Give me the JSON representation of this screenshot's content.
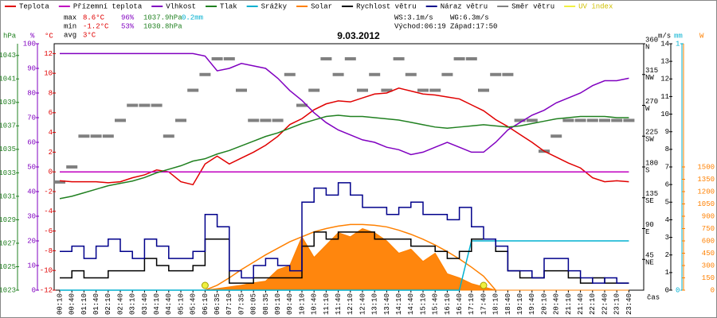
{
  "chart_data": {
    "type": "line",
    "title": "9.03.2012",
    "x_label": "čas",
    "categories": [
      "00:10",
      "00:40",
      "01:10",
      "01:40",
      "02:10",
      "02:40",
      "03:10",
      "03:40",
      "04:10",
      "04:40",
      "05:10",
      "05:40",
      "06:10",
      "06:35",
      "07:10",
      "07:35",
      "08:05",
      "08:35",
      "09:10",
      "09:40",
      "10:10",
      "10:40",
      "11:10",
      "11:40",
      "12:10",
      "12:40",
      "13:10",
      "13:40",
      "14:10",
      "14:40",
      "15:10",
      "15:40",
      "16:10",
      "16:40",
      "17:10",
      "17:40",
      "18:10",
      "18:40",
      "19:10",
      "19:40",
      "20:10",
      "20:40",
      "21:10",
      "21:40",
      "22:10",
      "22:40",
      "23:10",
      "23:40"
    ],
    "axes": {
      "hpa": {
        "label": "hPa",
        "color": "#208020",
        "lim": [
          1023,
          1044
        ],
        "ticks": [
          1023,
          1025,
          1027,
          1029,
          1031,
          1033,
          1035,
          1037,
          1039,
          1041,
          1043
        ]
      },
      "pct": {
        "label": "%",
        "color": "#8000c0",
        "lim": [
          0,
          100
        ],
        "ticks": [
          0,
          10,
          20,
          30,
          40,
          50,
          60,
          70,
          80,
          90,
          100
        ]
      },
      "temp": {
        "label": "°C",
        "color": "#e00000",
        "lim": [
          -12,
          13
        ],
        "ticks": [
          -12,
          -10,
          -8,
          -6,
          -4,
          -2,
          0,
          2,
          4,
          6,
          8,
          10,
          12
        ]
      },
      "dir": {
        "color": "#000000",
        "lim": [
          0,
          360
        ],
        "ticks": [
          45,
          90,
          135,
          180,
          225,
          270,
          315,
          360
        ],
        "compass": [
          "NE",
          "E",
          "SE",
          "S",
          "SW",
          "W",
          "NW",
          "N"
        ]
      },
      "ms": {
        "label": "m/s",
        "color": "#000000",
        "lim": [
          0,
          14
        ],
        "ticks": [
          0,
          1,
          2,
          3,
          4,
          5,
          6,
          7,
          8,
          9,
          10,
          11,
          12,
          13,
          14
        ]
      },
      "mm": {
        "label": "mm",
        "color": "#00b0d0",
        "lim": [
          0,
          1
        ],
        "ticks": [
          0,
          1
        ]
      },
      "w": {
        "label": "W",
        "color": "#ff8000",
        "lim": [
          0,
          3000
        ],
        "ticks": [
          0,
          150,
          300,
          450,
          600,
          750,
          900,
          1050,
          1200,
          1350,
          1500
        ]
      }
    },
    "series": [
      {
        "name": "Teplota",
        "color": "#e00000",
        "axis": "temp",
        "style": "line",
        "values": [
          -0.9,
          -1.0,
          -1.0,
          -1.0,
          -1.1,
          -1.0,
          -0.6,
          -0.3,
          0.2,
          0.0,
          -1.0,
          -1.3,
          0.8,
          1.6,
          0.8,
          1.4,
          2.0,
          2.7,
          3.6,
          4.8,
          5.4,
          6.3,
          6.9,
          7.2,
          7.1,
          7.5,
          7.9,
          8.0,
          8.5,
          8.2,
          7.9,
          7.8,
          7.6,
          7.4,
          6.8,
          6.2,
          5.3,
          4.6,
          3.8,
          3.0,
          2.1,
          1.5,
          0.9,
          0.4,
          -0.6,
          -1.0,
          -0.9,
          -1.0
        ]
      },
      {
        "name": "Přízemní teplota",
        "color": "#c000c0",
        "axis": "temp",
        "style": "line",
        "values": [
          0,
          0,
          0,
          0,
          0,
          0,
          0,
          0,
          0,
          0,
          0,
          0,
          0,
          0,
          0,
          0,
          0,
          0,
          0,
          0,
          0,
          0,
          0,
          0,
          0,
          0,
          0,
          0,
          0,
          0,
          0,
          0,
          0,
          0,
          0,
          0,
          0,
          0,
          0,
          0,
          0,
          0,
          0,
          0,
          0,
          0,
          0,
          0
        ]
      },
      {
        "name": "Vlhkost",
        "color": "#8000c0",
        "axis": "pct",
        "style": "line",
        "values": [
          96,
          96,
          96,
          96,
          96,
          96,
          96,
          96,
          96,
          96,
          96,
          96,
          95,
          89,
          90,
          92,
          91,
          90,
          86,
          81,
          77,
          72,
          68,
          65,
          63,
          61,
          60,
          58,
          57,
          55,
          56,
          58,
          60,
          58,
          56,
          56,
          60,
          65,
          68,
          71,
          73,
          76,
          78,
          80,
          83,
          85,
          85,
          86
        ]
      },
      {
        "name": "Tlak",
        "color": "#208020",
        "axis": "hpa",
        "style": "line",
        "values": [
          1030.8,
          1031.0,
          1031.3,
          1031.6,
          1031.9,
          1032.1,
          1032.3,
          1032.6,
          1033.0,
          1033.3,
          1033.6,
          1034.0,
          1034.2,
          1034.6,
          1034.9,
          1035.3,
          1035.7,
          1036.1,
          1036.4,
          1036.8,
          1037.2,
          1037.5,
          1037.8,
          1037.9,
          1037.8,
          1037.8,
          1037.7,
          1037.6,
          1037.5,
          1037.3,
          1037.1,
          1036.9,
          1036.8,
          1036.9,
          1037.0,
          1037.1,
          1037.0,
          1036.9,
          1037.0,
          1037.2,
          1037.4,
          1037.6,
          1037.7,
          1037.8,
          1037.8,
          1037.8,
          1037.7,
          1037.7
        ]
      },
      {
        "name": "Srážky",
        "color": "#00b0d0",
        "axis": "mm",
        "style": "line",
        "values": [
          0,
          0,
          0,
          0,
          0,
          0,
          0,
          0,
          0,
          0,
          0,
          0,
          0,
          0,
          0,
          0,
          0,
          0,
          0,
          0,
          0,
          0,
          0,
          0,
          0,
          0,
          0,
          0,
          0,
          0,
          0,
          0,
          0,
          0,
          0.2,
          0.2,
          0.2,
          0.2,
          0.2,
          0.2,
          0.2,
          0.2,
          0.2,
          0.2,
          0.2,
          0.2,
          0.2,
          0.2
        ]
      },
      {
        "name": "Solar",
        "color": "#ff8000",
        "axis": "w",
        "style": "area",
        "values": [
          0,
          0,
          0,
          0,
          0,
          0,
          0,
          0,
          0,
          0,
          0,
          0,
          0,
          20,
          40,
          60,
          90,
          110,
          250,
          300,
          650,
          400,
          550,
          700,
          650,
          750,
          700,
          600,
          450,
          500,
          350,
          450,
          200,
          150,
          80,
          40,
          0,
          0,
          0,
          0,
          0,
          0,
          0,
          0,
          0,
          0,
          0,
          0
        ]
      },
      {
        "name": "Rychlost větru",
        "color": "#000000",
        "axis": "ms",
        "style": "step",
        "values": [
          0.7,
          1.1,
          0.7,
          0.7,
          1.1,
          1.1,
          1.1,
          1.8,
          1.4,
          1.1,
          1.1,
          1.4,
          2.9,
          2.9,
          0.4,
          0.4,
          0.7,
          0.7,
          0.7,
          0.7,
          2.5,
          3.3,
          2.9,
          3.3,
          3.3,
          3.3,
          2.9,
          2.9,
          2.9,
          2.5,
          2.5,
          2.2,
          1.8,
          2.2,
          2.9,
          2.9,
          2.2,
          1.1,
          0.7,
          0.7,
          1.1,
          1.1,
          0.7,
          0.4,
          0.7,
          0.4,
          0.4,
          0.4
        ]
      },
      {
        "name": "Náraz větru",
        "color": "#00008b",
        "axis": "ms",
        "style": "step",
        "values": [
          2.2,
          2.5,
          1.8,
          2.5,
          2.9,
          2.2,
          1.8,
          2.9,
          2.5,
          1.8,
          1.8,
          2.2,
          4.3,
          3.6,
          1.1,
          0.7,
          1.4,
          1.8,
          1.4,
          1.1,
          5.0,
          5.8,
          5.4,
          6.1,
          5.4,
          4.7,
          4.7,
          4.3,
          4.7,
          5.0,
          4.3,
          4.3,
          4.0,
          4.7,
          3.6,
          2.9,
          2.5,
          1.1,
          1.1,
          0.7,
          1.8,
          1.8,
          1.1,
          0.7,
          0.4,
          0.7,
          0.4,
          0.4
        ]
      },
      {
        "name": "Směr větru",
        "color": "#808080",
        "axis": "dir",
        "style": "dash",
        "values": [
          158,
          180,
          225,
          225,
          225,
          248,
          270,
          270,
          270,
          225,
          248,
          292,
          315,
          338,
          338,
          292,
          248,
          248,
          248,
          315,
          270,
          292,
          338,
          315,
          338,
          292,
          315,
          292,
          338,
          315,
          292,
          292,
          315,
          338,
          338,
          292,
          315,
          315,
          248,
          248,
          203,
          225,
          248,
          248,
          248,
          248,
          248,
          248
        ]
      },
      {
        "name": "UV index",
        "color": "#f0f040",
        "axis": "ms",
        "style": "dot",
        "values": [
          null,
          null,
          null,
          null,
          null,
          null,
          null,
          null,
          null,
          null,
          null,
          null,
          0,
          null,
          null,
          null,
          null,
          null,
          null,
          null,
          null,
          null,
          null,
          null,
          null,
          null,
          null,
          null,
          null,
          null,
          null,
          null,
          null,
          null,
          null,
          0,
          null,
          null,
          null,
          null,
          null,
          null,
          null,
          null,
          null,
          null,
          null,
          null
        ]
      }
    ],
    "solar_curve": {
      "color": "#ff8000",
      "axis": "w",
      "values": [
        null,
        null,
        null,
        null,
        null,
        null,
        null,
        null,
        null,
        null,
        null,
        null,
        0,
        60,
        150,
        250,
        340,
        430,
        510,
        590,
        650,
        710,
        750,
        780,
        800,
        800,
        790,
        770,
        730,
        680,
        620,
        550,
        470,
        380,
        280,
        170,
        0,
        null,
        null,
        null,
        null,
        null,
        null,
        null,
        null,
        null,
        null,
        null
      ]
    },
    "stats": [
      {
        "label": "max",
        "temp": "8.6°C",
        "hum": "96%",
        "press": "1037.9hPa",
        "rain": "0.2mm"
      },
      {
        "label": "min",
        "temp": "-1.2°C",
        "hum": "53%",
        "press": "1030.8hPa"
      },
      {
        "label": "avg",
        "temp": "3°C"
      }
    ],
    "info": {
      "ws": "WS:3.1m/s",
      "wg": "WG:6.3m/s",
      "sunrise": "Východ:06:19",
      "sunset": "Západ:17:50"
    }
  }
}
